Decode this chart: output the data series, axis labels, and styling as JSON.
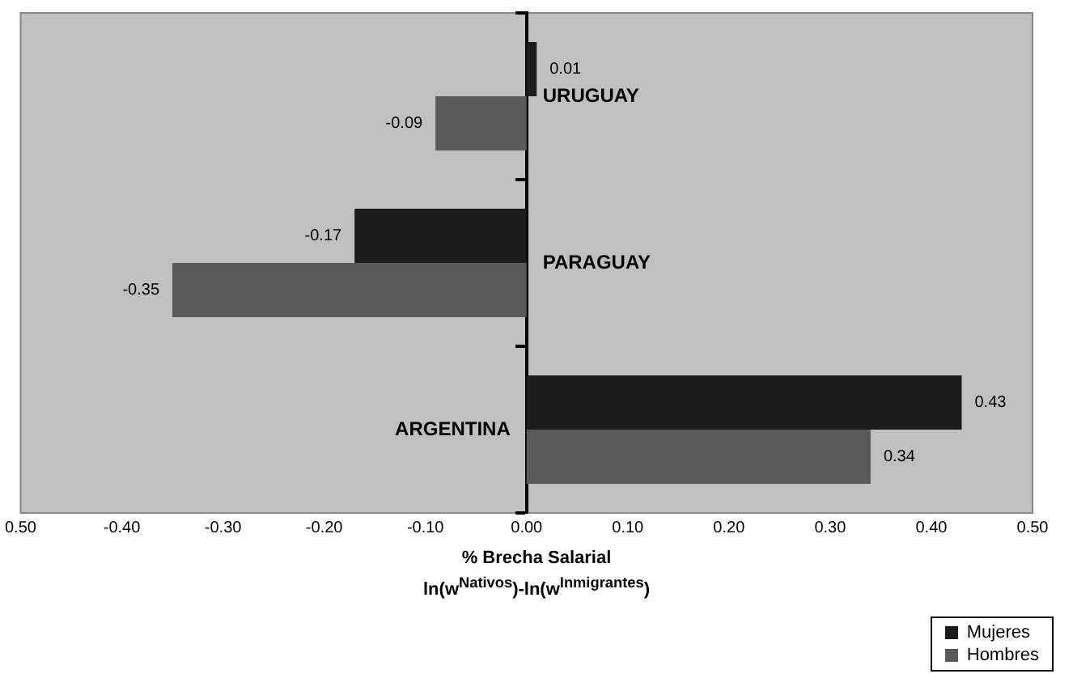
{
  "chart_data": {
    "type": "bar",
    "orientation": "horizontal",
    "categories": [
      "URUGUAY",
      "PARAGUAY",
      "ARGENTINA"
    ],
    "series": [
      {
        "name": "Mujeres",
        "color": "#1c1c1c",
        "values": [
          0.01,
          -0.17,
          0.43
        ]
      },
      {
        "name": "Hombres",
        "color": "#595959",
        "values": [
          -0.09,
          -0.35,
          0.34
        ]
      }
    ],
    "xlabel": "% Brecha Salarial\nln(w$^{Nativos}$)-ln(w$^{Inmigrantes}$)",
    "xlim": [
      -0.5,
      0.5
    ],
    "xticks": [
      {
        "value": -0.5,
        "label": "0.50"
      },
      {
        "value": -0.4,
        "label": "-0.40"
      },
      {
        "value": -0.3,
        "label": "-0.30"
      },
      {
        "value": -0.2,
        "label": "-0.20"
      },
      {
        "value": -0.1,
        "label": "-0.10"
      },
      {
        "value": 0,
        "label": "0.00"
      },
      {
        "value": 0.1,
        "label": "0.10"
      },
      {
        "value": 0.2,
        "label": "0.20"
      },
      {
        "value": 0.3,
        "label": "0.30"
      },
      {
        "value": 0.4,
        "label": "0.40"
      },
      {
        "value": 0.5,
        "label": "0.50"
      }
    ],
    "data_labels": true,
    "grid": false,
    "legend": "bottom right"
  }
}
